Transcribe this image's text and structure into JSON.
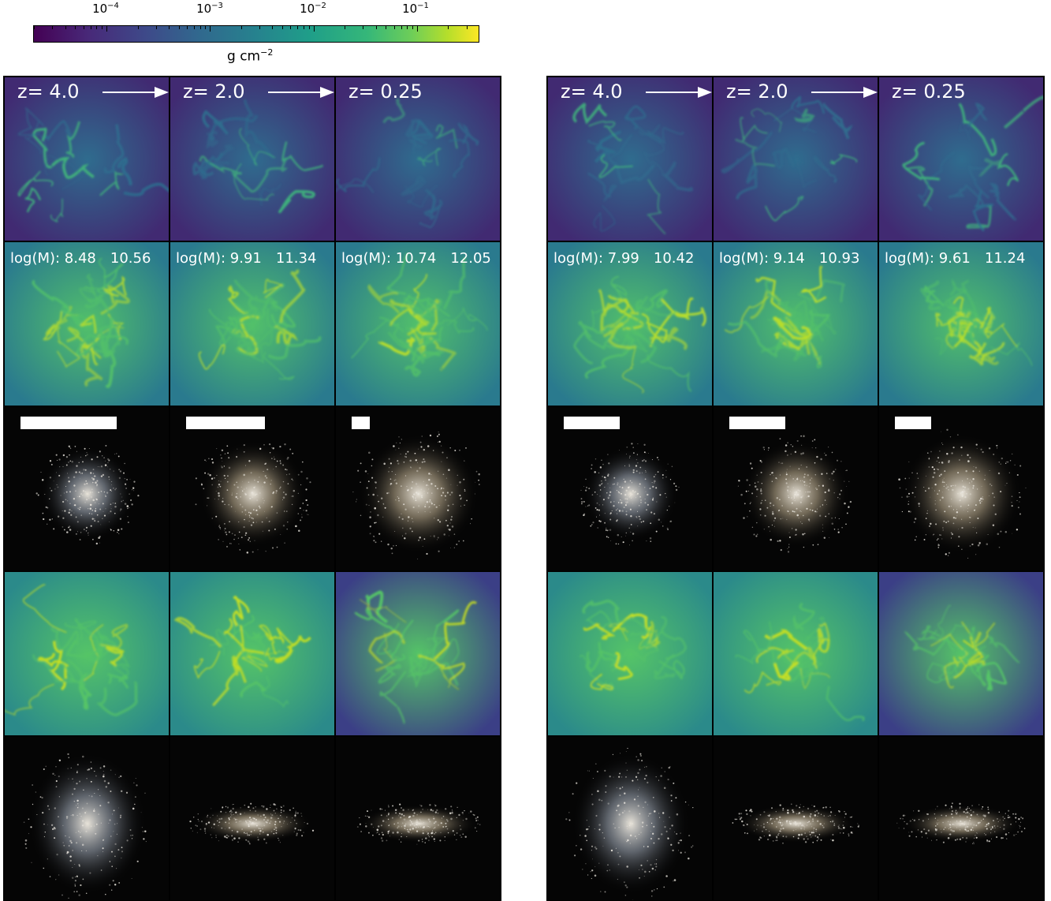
{
  "colorbar": {
    "tick_labels": [
      "10",
      "10",
      "10",
      "10"
    ],
    "tick_exponents": [
      "−4",
      "−3",
      "−2",
      "−1"
    ],
    "unit_main": "g cm",
    "unit_exp": "−2",
    "colormap": "viridis",
    "scale": "log"
  },
  "left": {
    "redshifts": [
      "z= 4.0",
      "z= 2.0",
      "z= 0.25"
    ],
    "mass_labels": [
      {
        "prefix": "log(M): 8.48",
        "second": "10.56"
      },
      {
        "prefix": "log(M): 9.91",
        "second": "11.34"
      },
      {
        "prefix": "log(M): 10.74",
        "second": "12.05"
      }
    ]
  },
  "right": {
    "redshifts": [
      "z= 4.0",
      "z= 2.0",
      "z= 0.25"
    ],
    "mass_labels": [
      {
        "prefix": "log(M): 7.99",
        "second": "10.42"
      },
      {
        "prefix": "log(M): 9.14",
        "second": "10.93"
      },
      {
        "prefix": "log(M): 9.61",
        "second": "11.24"
      }
    ]
  },
  "colors": {
    "gas_low": "#46317e",
    "gas_mid": "#2a788e",
    "gas_high": "#7ad151",
    "stars": "#f0e8d8",
    "background": "#000000"
  }
}
